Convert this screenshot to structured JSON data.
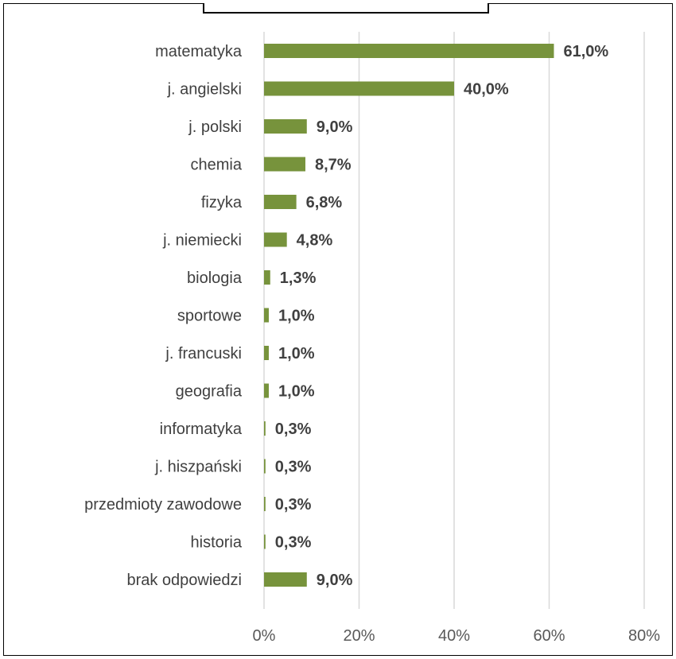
{
  "chart_data": {
    "type": "bar",
    "orientation": "horizontal",
    "categories": [
      "matematyka",
      "j. angielski",
      "j. polski",
      "chemia",
      "fizyka",
      "j. niemiecki",
      "biologia",
      "sportowe",
      "j. francuski",
      "geografia",
      "informatyka",
      "j. hiszpański",
      "przedmioty zawodowe",
      "historia",
      "brak odpowiedzi"
    ],
    "values": [
      61.0,
      40.0,
      9.0,
      8.7,
      6.8,
      4.8,
      1.3,
      1.0,
      1.0,
      1.0,
      0.3,
      0.3,
      0.3,
      0.3,
      9.0
    ],
    "data_labels": [
      "61,0%",
      "40,0%",
      "9,0%",
      "8,7%",
      "6,8%",
      "4,8%",
      "1,3%",
      "1,0%",
      "1,0%",
      "1,0%",
      "0,3%",
      "0,3%",
      "0,3%",
      "0,3%",
      "9,0%"
    ],
    "xlim": [
      0,
      80
    ],
    "x_ticks": [
      0,
      20,
      40,
      60,
      80
    ],
    "x_tick_labels": [
      "0%",
      "20%",
      "40%",
      "60%",
      "80%"
    ],
    "title": "",
    "xlabel": "",
    "ylabel": "",
    "grid": "vertical",
    "legend": "none",
    "bar_color": "#77933c",
    "grid_color": "#d9d9d9"
  }
}
